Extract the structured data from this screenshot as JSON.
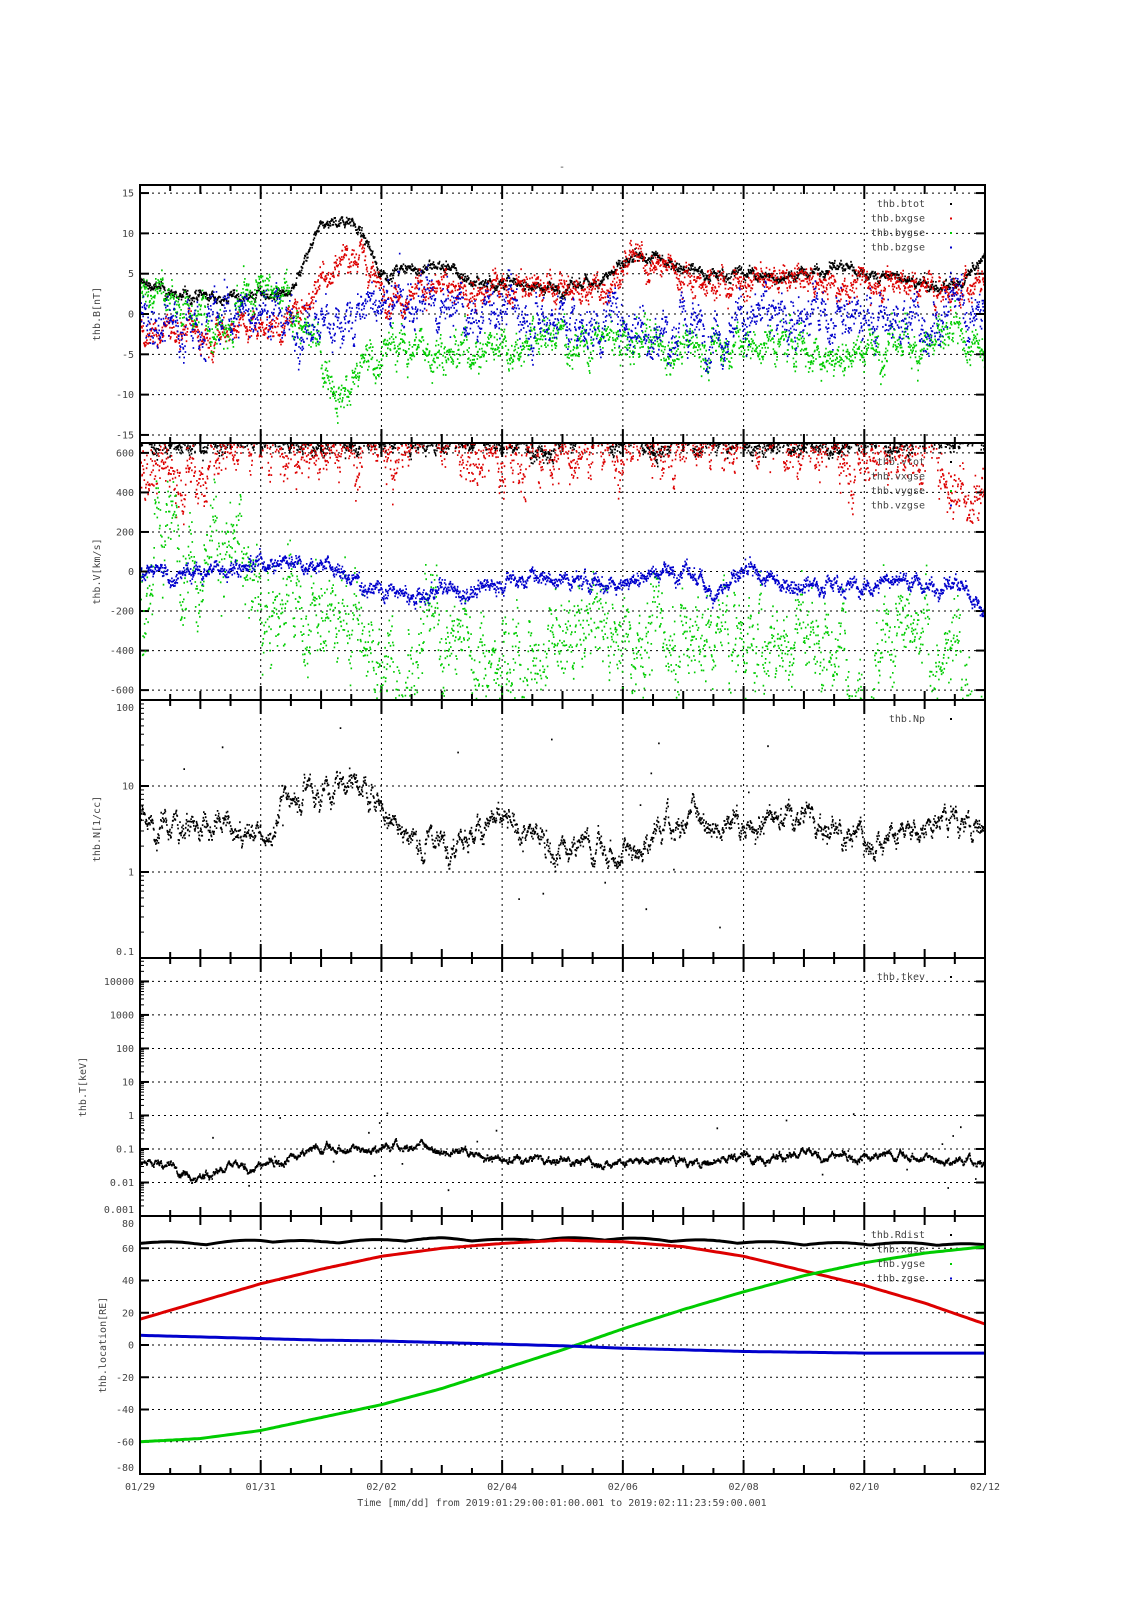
{
  "title": "-",
  "xlabel": "Time [mm/dd]  from 2019:01:29:00:01:00.001  to  2019:02:11:23:59:00.001",
  "colors": {
    "black": "#000000",
    "red": "#dd0000",
    "green": "#00cc00",
    "blue": "#0000cc"
  },
  "chart_data": [
    {
      "type": "scatter",
      "ylabel": "thb.B[nT]",
      "yscale": "linear",
      "ylim": [
        -16,
        16
      ],
      "yticks": [
        15,
        10,
        5,
        0,
        -5,
        -10,
        -15
      ],
      "grid": true,
      "legend": "top-right",
      "x_days_step": 0.5,
      "series": [
        {
          "name": "thb.btot",
          "color": "black",
          "noise": 0.6,
          "values": [
            4,
            2.5,
            2,
            2,
            2.5,
            2.5,
            11,
            12,
            5,
            5.5,
            6,
            4,
            4,
            3.5,
            3,
            4,
            6,
            7,
            6,
            5,
            5,
            4.5,
            5,
            6,
            5,
            4.5,
            3.5,
            3,
            7
          ]
        },
        {
          "name": "thb.bxgse",
          "color": "red",
          "noise": 1.5,
          "values": [
            -2,
            -2,
            -2,
            -1,
            -1,
            -1,
            5,
            8,
            3,
            3,
            3,
            3,
            3,
            3,
            3,
            3,
            6,
            6,
            5,
            4,
            4,
            4,
            4,
            4,
            4,
            4,
            3,
            3,
            4
          ]
        },
        {
          "name": "thb.bygse",
          "color": "green",
          "noise": 2.0,
          "values": [
            3,
            2,
            0,
            1,
            2,
            1,
            -6,
            -9,
            -4,
            -4,
            -4,
            -4,
            -3,
            -3,
            -3,
            -3,
            -4,
            -4,
            -4,
            -4,
            -4,
            -4,
            -4,
            -5,
            -4,
            -4,
            -3,
            -4,
            -5
          ]
        },
        {
          "name": "thb.bzgse",
          "color": "blue",
          "noise": 2.5,
          "values": [
            0,
            0,
            -1,
            0,
            1,
            -1,
            -2,
            0,
            1,
            1,
            0,
            0,
            1,
            1,
            0,
            -1,
            0,
            -2,
            -2,
            -1,
            -1,
            0,
            0,
            -1,
            -1,
            -1,
            0,
            0,
            0
          ]
        }
      ]
    },
    {
      "type": "scatter",
      "ylabel": "thb.V[km/s]",
      "yscale": "linear",
      "ylim": [
        -650,
        650
      ],
      "yticks": [
        600,
        400,
        200,
        0,
        -200,
        -400,
        -600
      ],
      "grid": true,
      "legend": "top-right",
      "x_days_step": 0.5,
      "series": [
        {
          "name": "thb.vtot",
          "color": "black",
          "noise": 40,
          "values": [
            650,
            650,
            650,
            650,
            650,
            650,
            650,
            650,
            650,
            650,
            650,
            650,
            650,
            650,
            650,
            650,
            650,
            650,
            650,
            650,
            650,
            650,
            650,
            650,
            650,
            650,
            650,
            650,
            650
          ]
        },
        {
          "name": "thb.vxgse",
          "color": "red",
          "noise": 120,
          "values": [
            550,
            500,
            480,
            640,
            640,
            640,
            640,
            640,
            640,
            640,
            640,
            640,
            640,
            580,
            600,
            640,
            640,
            640,
            600,
            640,
            640,
            640,
            640,
            640,
            640,
            640,
            640,
            450,
            400
          ]
        },
        {
          "name": "thb.vygse",
          "color": "green",
          "noise": 200,
          "values": [
            -100,
            250,
            150,
            100,
            -100,
            -200,
            -300,
            -250,
            -500,
            -400,
            -350,
            -400,
            -400,
            -450,
            -400,
            -300,
            -300,
            -250,
            -350,
            -350,
            -300,
            -400,
            -300,
            -350,
            -450,
            -400,
            -400,
            -500,
            -550
          ]
        },
        {
          "name": "thb.vzgse",
          "color": "blue",
          "noise": 35,
          "values": [
            0,
            -20,
            0,
            30,
            50,
            60,
            50,
            -50,
            -80,
            -150,
            -100,
            -100,
            -50,
            -30,
            -50,
            -60,
            -50,
            0,
            0,
            -100,
            -20,
            -50,
            -60,
            -50,
            -100,
            -20,
            -80,
            -60,
            -200
          ]
        }
      ]
    },
    {
      "type": "scatter",
      "ylabel": "thb.N[1/cc]",
      "yscale": "log",
      "ylim": [
        0.1,
        100
      ],
      "yticks": [
        100,
        10,
        1,
        0.1
      ],
      "grid": true,
      "legend": "top-right",
      "x_days_step": 0.5,
      "series": [
        {
          "name": "thb.Np",
          "color": "black",
          "noise": 0.08,
          "values": [
            3.5,
            3.8,
            3.2,
            3,
            3,
            7,
            9,
            12,
            6,
            2.3,
            2.3,
            3,
            3.3,
            2.5,
            2,
            1.8,
            1.4,
            2.5,
            4,
            4.5,
            3,
            5,
            4.5,
            2.5,
            2.5,
            2.8,
            3.5,
            4,
            3.5
          ]
        }
      ]
    },
    {
      "type": "scatter",
      "ylabel": "thb.T[keV]",
      "yscale": "log",
      "ylim": [
        0.001,
        50000
      ],
      "yticks": [
        10000,
        1000,
        100,
        10,
        1,
        0.1,
        0.01,
        0.001
      ],
      "grid": true,
      "legend": "top-right",
      "x_days_step": 0.5,
      "series": [
        {
          "name": "thb.tkev",
          "color": "black",
          "noise": 0.06,
          "values": [
            0.04,
            0.03,
            0.015,
            0.025,
            0.03,
            0.06,
            0.1,
            0.09,
            0.1,
            0.12,
            0.1,
            0.07,
            0.05,
            0.05,
            0.04,
            0.04,
            0.04,
            0.05,
            0.04,
            0.04,
            0.06,
            0.06,
            0.06,
            0.06,
            0.06,
            0.06,
            0.05,
            0.04,
            0.04
          ]
        }
      ]
    },
    {
      "type": "line",
      "ylabel": "thb.location[RE]",
      "yscale": "linear",
      "ylim": [
        -80,
        80
      ],
      "yticks": [
        80,
        60,
        40,
        20,
        0,
        -20,
        -40,
        -60,
        -80
      ],
      "grid": true,
      "legend": "top-right",
      "x_days_step": 1,
      "series": [
        {
          "name": "thb.Rdist",
          "color": "black",
          "values": [
            63,
            62,
            64,
            63,
            64,
            65,
            64,
            65,
            65,
            64,
            63,
            62,
            62,
            62,
            61
          ]
        },
        {
          "name": "thb.xgse",
          "color": "red",
          "values": [
            16,
            27,
            38,
            47,
            55,
            60,
            63,
            65,
            64,
            61,
            55,
            46,
            37,
            26,
            13
          ]
        },
        {
          "name": "thb.ygse",
          "color": "green",
          "values": [
            -60,
            -58,
            -53,
            -45,
            -37,
            -27,
            -15,
            -3,
            10,
            22,
            33,
            43,
            51,
            57,
            61
          ]
        },
        {
          "name": "thb.zgse",
          "color": "blue",
          "values": [
            6,
            5,
            4,
            3,
            2.5,
            1.5,
            0.5,
            -0.5,
            -2,
            -3,
            -4,
            -4.5,
            -5,
            -5,
            -5
          ]
        }
      ]
    }
  ],
  "xticks": [
    "01/29",
    "01/31",
    "02/02",
    "02/04",
    "02/06",
    "02/08",
    "02/10",
    "02/12"
  ],
  "xrange_days": [
    0,
    14
  ]
}
